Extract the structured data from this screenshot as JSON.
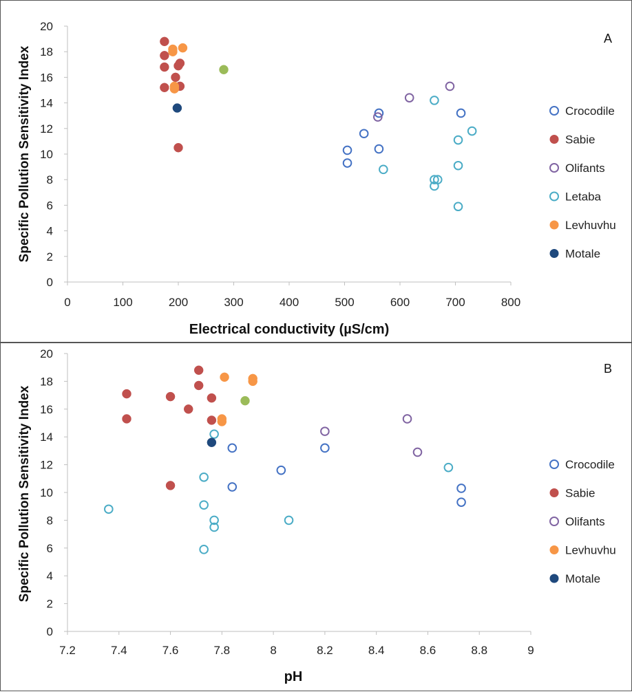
{
  "chart_data": [
    {
      "type": "scatter",
      "panel_label": "A",
      "xlabel": "Electrical conductivity (µS/cm)",
      "ylabel": "Specific Pollution Sensitivity Index",
      "xlim": [
        0,
        800
      ],
      "ylim": [
        0,
        20
      ],
      "x_ticks": [
        "0",
        "100",
        "200",
        "300",
        "400",
        "500",
        "600",
        "700",
        "800"
      ],
      "y_ticks": [
        "0",
        "2",
        "4",
        "6",
        "8",
        "10",
        "12",
        "14",
        "16",
        "18",
        "20"
      ],
      "grid": false,
      "legend_position": "right",
      "legend": [
        {
          "name": "Crocodile",
          "color": "#4472C4",
          "filled": false
        },
        {
          "name": "Sabie",
          "color": "#C0504D",
          "filled": true
        },
        {
          "name": "Olifants",
          "color": "#8064A2",
          "filled": false
        },
        {
          "name": "Letaba",
          "color": "#4BACC6",
          "filled": false
        },
        {
          "name": "Levhuvhu",
          "color": "#F79646",
          "filled": true
        },
        {
          "name": "Motale",
          "color": "#1F497D",
          "filled": true
        }
      ],
      "series": [
        {
          "name": "Crocodile",
          "color": "#4472C4",
          "filled": false,
          "points": [
            [
              505,
              10.3
            ],
            [
              505,
              9.3
            ],
            [
              535,
              11.6
            ],
            [
              562,
              13.2
            ],
            [
              562,
              10.4
            ],
            [
              710,
              13.2
            ]
          ]
        },
        {
          "name": "Sabie",
          "color": "#C0504D",
          "filled": true,
          "points": [
            [
              175,
              18.8
            ],
            [
              175,
              17.7
            ],
            [
              175,
              16.8
            ],
            [
              175,
              15.2
            ],
            [
              195,
              16.0
            ],
            [
              200,
              16.9
            ],
            [
              203,
              17.1
            ],
            [
              203,
              15.3
            ],
            [
              200,
              10.5
            ]
          ]
        },
        {
          "name": "Olifants",
          "color": "#8064A2",
          "filled": false,
          "points": [
            [
              560,
              12.9
            ],
            [
              617,
              14.4
            ],
            [
              690,
              15.3
            ]
          ]
        },
        {
          "name": "Letaba",
          "color": "#4BACC6",
          "filled": false,
          "points": [
            [
              570,
              8.8
            ],
            [
              662,
              14.2
            ],
            [
              662,
              8.0
            ],
            [
              662,
              7.5
            ],
            [
              668,
              8.0
            ],
            [
              705,
              11.1
            ],
            [
              705,
              9.1
            ],
            [
              705,
              5.9
            ],
            [
              730,
              11.8
            ]
          ]
        },
        {
          "name": "Levhuvhu",
          "color": "#F79646",
          "filled": true,
          "points": [
            [
              190,
              18.2
            ],
            [
              190,
              18.0
            ],
            [
              193,
              15.3
            ],
            [
              193,
              15.1
            ],
            [
              208,
              18.3
            ]
          ]
        },
        {
          "name": "Motale",
          "color": "#1F497D",
          "filled": true,
          "points": [
            [
              198,
              13.6
            ]
          ]
        },
        {
          "name": "",
          "color": "#9BBB59",
          "filled": true,
          "points": [
            [
              282,
              16.6
            ]
          ]
        }
      ]
    },
    {
      "type": "scatter",
      "panel_label": "B",
      "xlabel": "pH",
      "ylabel": "Specific Pollution Sensitivity Index",
      "xlim": [
        7.2,
        9
      ],
      "ylim": [
        0,
        20
      ],
      "x_ticks": [
        "7.2",
        "7.4",
        "7.6",
        "7.8",
        "8",
        "8.2",
        "8.4",
        "8.6",
        "8.8",
        "9"
      ],
      "y_ticks": [
        "0",
        "2",
        "4",
        "6",
        "8",
        "10",
        "12",
        "14",
        "16",
        "18",
        "20"
      ],
      "grid": false,
      "legend_position": "right",
      "legend": [
        {
          "name": "Crocodile",
          "color": "#4472C4",
          "filled": false
        },
        {
          "name": "Sabie",
          "color": "#C0504D",
          "filled": true
        },
        {
          "name": "Olifants",
          "color": "#8064A2",
          "filled": false
        },
        {
          "name": "Levhuvhu",
          "color": "#F79646",
          "filled": true
        },
        {
          "name": "Motale",
          "color": "#1F497D",
          "filled": true
        }
      ],
      "series": [
        {
          "name": "Crocodile",
          "color": "#4472C4",
          "filled": false,
          "points": [
            [
              7.84,
              13.2
            ],
            [
              7.84,
              10.4
            ],
            [
              8.03,
              11.6
            ],
            [
              8.2,
              13.2
            ],
            [
              8.73,
              10.3
            ],
            [
              8.73,
              9.3
            ]
          ]
        },
        {
          "name": "Sabie",
          "color": "#C0504D",
          "filled": true,
          "points": [
            [
              7.43,
              17.1
            ],
            [
              7.43,
              15.3
            ],
            [
              7.6,
              16.9
            ],
            [
              7.6,
              10.5
            ],
            [
              7.67,
              16.0
            ],
            [
              7.71,
              18.8
            ],
            [
              7.71,
              17.7
            ],
            [
              7.76,
              16.8
            ],
            [
              7.76,
              15.2
            ]
          ]
        },
        {
          "name": "Olifants",
          "color": "#8064A2",
          "filled": false,
          "points": [
            [
              8.2,
              14.4
            ],
            [
              8.52,
              15.3
            ],
            [
              8.56,
              12.9
            ]
          ]
        },
        {
          "name": "",
          "color": "#4BACC6",
          "filled": false,
          "points": [
            [
              7.36,
              8.8
            ],
            [
              7.73,
              11.1
            ],
            [
              7.73,
              9.1
            ],
            [
              7.73,
              5.9
            ],
            [
              7.77,
              14.2
            ],
            [
              7.77,
              8.0
            ],
            [
              7.77,
              7.5
            ],
            [
              8.06,
              8.0
            ],
            [
              8.68,
              11.8
            ]
          ]
        },
        {
          "name": "Levhuvhu",
          "color": "#F79646",
          "filled": true,
          "points": [
            [
              7.81,
              18.3
            ],
            [
              7.8,
              15.3
            ],
            [
              7.8,
              15.1
            ],
            [
              7.92,
              18.2
            ],
            [
              7.92,
              18.0
            ]
          ]
        },
        {
          "name": "Motale",
          "color": "#1F497D",
          "filled": true,
          "points": [
            [
              7.76,
              13.6
            ]
          ]
        },
        {
          "name": "",
          "color": "#9BBB59",
          "filled": true,
          "points": [
            [
              7.89,
              16.6
            ]
          ]
        }
      ]
    }
  ]
}
